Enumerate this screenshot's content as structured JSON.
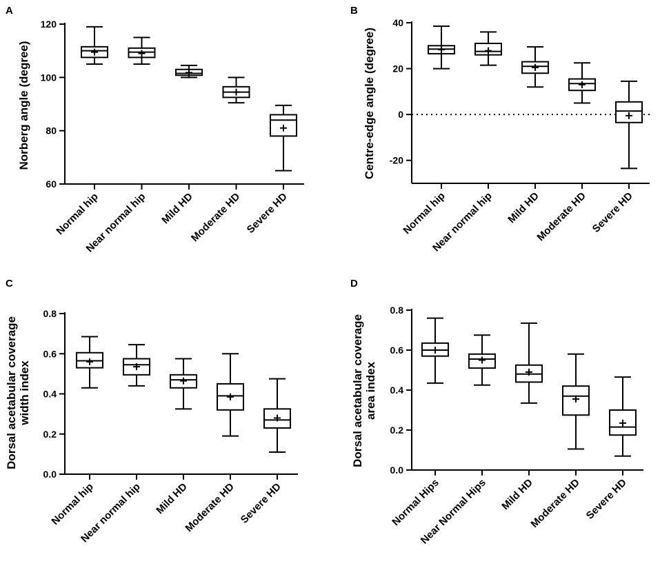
{
  "chart_data": [
    {
      "panel": "A",
      "type": "box",
      "title": "",
      "xlabel": "",
      "ylabel": "Norberg angle (degree)",
      "ylim": [
        60,
        125
      ],
      "yticks": [
        60,
        80,
        100,
        120
      ],
      "categories": [
        "Normal hip",
        "Near normal hip",
        "Mild HD",
        "Moderate HD",
        "Severe HD"
      ],
      "boxes": [
        {
          "min": 105,
          "q1": 107.5,
          "median": 110,
          "q3": 111.5,
          "max": 119,
          "mean": 109.5
        },
        {
          "min": 105,
          "q1": 107.5,
          "median": 109.5,
          "q3": 111,
          "max": 115,
          "mean": 109
        },
        {
          "min": 100,
          "q1": 100.8,
          "median": 101.5,
          "q3": 103,
          "max": 104.5,
          "mean": 101.8
        },
        {
          "min": 90.5,
          "q1": 92.5,
          "median": 94.5,
          "q3": 96.5,
          "max": 100,
          "mean": 94.5
        },
        {
          "min": 65,
          "q1": 78,
          "median": 84,
          "q3": 86,
          "max": 89.5,
          "mean": 81
        }
      ]
    },
    {
      "panel": "B",
      "type": "box",
      "title": "",
      "xlabel": "",
      "ylabel": "Centre-edge angle (degree)",
      "ylim": [
        -30,
        40
      ],
      "yticks": [
        -20,
        0,
        20,
        40
      ],
      "reference_line": 0,
      "categories": [
        "Normal hip",
        "Near normal hip",
        "Mild HD",
        "Moderate HD",
        "Severe HD"
      ],
      "boxes": [
        {
          "min": 20,
          "q1": 26.5,
          "median": 28.5,
          "q3": 30,
          "max": 38.5,
          "mean": 28.3
        },
        {
          "min": 21.5,
          "q1": 26,
          "median": 27.5,
          "q3": 31,
          "max": 36,
          "mean": 27.8
        },
        {
          "min": 12,
          "q1": 18,
          "median": 21,
          "q3": 23,
          "max": 29.5,
          "mean": 20.5
        },
        {
          "min": 5,
          "q1": 10.5,
          "median": 13.5,
          "q3": 15.5,
          "max": 22.5,
          "mean": 13
        },
        {
          "min": -23.5,
          "q1": -3.5,
          "median": 1.5,
          "q3": 5.5,
          "max": 14.5,
          "mean": -0.5
        }
      ]
    },
    {
      "panel": "C",
      "type": "box",
      "title": "",
      "xlabel": "",
      "ylabel": "Dorsal acetabular coverage width index",
      "ylabel_lines": [
        "Dorsal acetabular coverage",
        "width index"
      ],
      "ylim": [
        0,
        0.8
      ],
      "yticks": [
        "0.0",
        "0.2",
        "0.4",
        "0.6",
        "0.8"
      ],
      "categories": [
        "Normal hip",
        "Near normal hip",
        "Mild HD",
        "Moderate HD",
        "Severe HD"
      ],
      "boxes": [
        {
          "min": 0.43,
          "q1": 0.53,
          "median": 0.565,
          "q3": 0.605,
          "max": 0.685,
          "mean": 0.56
        },
        {
          "min": 0.44,
          "q1": 0.495,
          "median": 0.545,
          "q3": 0.575,
          "max": 0.645,
          "mean": 0.535
        },
        {
          "min": 0.325,
          "q1": 0.43,
          "median": 0.47,
          "q3": 0.495,
          "max": 0.575,
          "mean": 0.465
        },
        {
          "min": 0.19,
          "q1": 0.32,
          "median": 0.39,
          "q3": 0.45,
          "max": 0.6,
          "mean": 0.385
        },
        {
          "min": 0.11,
          "q1": 0.23,
          "median": 0.27,
          "q3": 0.325,
          "max": 0.475,
          "mean": 0.28
        }
      ]
    },
    {
      "panel": "D",
      "type": "box",
      "title": "",
      "xlabel": "",
      "ylabel": "Dorsal acetabular coverage area index",
      "ylabel_lines": [
        "Dorsal acetabular coverage",
        "area index"
      ],
      "ylim": [
        0,
        0.8
      ],
      "yticks": [
        "0.0",
        "0.2",
        "0.4",
        "0.6",
        "0.8"
      ],
      "categories": [
        "Normal Hips",
        "Near Normal Hips",
        "Mild HD",
        "Moderate HD",
        "Severe HD"
      ],
      "boxes": [
        {
          "min": 0.435,
          "q1": 0.57,
          "median": 0.6,
          "q3": 0.635,
          "max": 0.76,
          "mean": 0.6
        },
        {
          "min": 0.425,
          "q1": 0.51,
          "median": 0.555,
          "q3": 0.58,
          "max": 0.675,
          "mean": 0.55
        },
        {
          "min": 0.335,
          "q1": 0.44,
          "median": 0.48,
          "q3": 0.525,
          "max": 0.735,
          "mean": 0.49
        },
        {
          "min": 0.105,
          "q1": 0.275,
          "median": 0.37,
          "q3": 0.42,
          "max": 0.58,
          "mean": 0.355
        },
        {
          "min": 0.07,
          "q1": 0.175,
          "median": 0.215,
          "q3": 0.3,
          "max": 0.465,
          "mean": 0.235
        }
      ]
    }
  ]
}
